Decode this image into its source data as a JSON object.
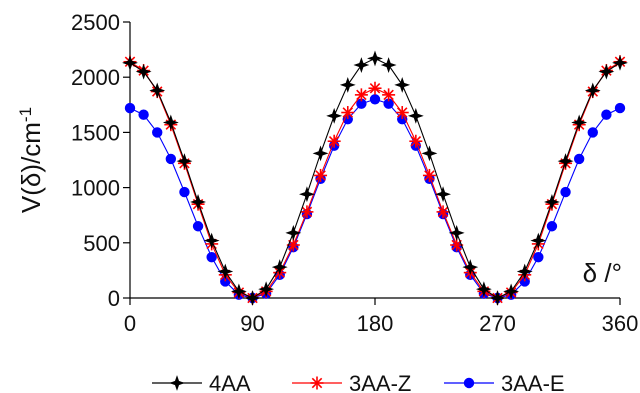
{
  "chart_data": {
    "type": "line",
    "xlabel": "δ /°",
    "ylabel": "V(δ)/cm",
    "ylabel_superscript": "-1",
    "xlim": [
      0,
      360
    ],
    "ylim": [
      0,
      2500
    ],
    "xticks": [
      0,
      90,
      180,
      270,
      360
    ],
    "yticks": [
      0,
      500,
      1000,
      1500,
      2000,
      2500
    ],
    "grid": false,
    "legend_position": "bottom",
    "x": [
      0,
      10,
      20,
      30,
      40,
      50,
      60,
      70,
      80,
      90,
      100,
      110,
      120,
      130,
      140,
      150,
      160,
      170,
      180,
      190,
      200,
      210,
      220,
      230,
      240,
      250,
      260,
      270,
      280,
      290,
      300,
      310,
      320,
      330,
      340,
      350,
      360
    ],
    "series": [
      {
        "name": "4AA",
        "color": "#000000",
        "marker": "star4",
        "values": [
          2130,
          2050,
          1880,
          1590,
          1240,
          870,
          520,
          240,
          60,
          0,
          80,
          280,
          590,
          940,
          1310,
          1650,
          1930,
          2110,
          2170,
          2110,
          1930,
          1650,
          1310,
          940,
          590,
          280,
          80,
          0,
          60,
          240,
          520,
          870,
          1240,
          1590,
          1880,
          2050,
          2130
        ]
      },
      {
        "name": "3AA-Z",
        "color": "#ff0000",
        "marker": "asterisk",
        "values": [
          2140,
          2060,
          1870,
          1570,
          1220,
          850,
          490,
          210,
          50,
          0,
          60,
          230,
          480,
          780,
          1110,
          1420,
          1680,
          1840,
          1900,
          1840,
          1680,
          1420,
          1110,
          780,
          480,
          230,
          60,
          0,
          50,
          210,
          490,
          850,
          1220,
          1570,
          1870,
          2060,
          2140
        ]
      },
      {
        "name": "3AA-E",
        "color": "#0000ff",
        "marker": "circle",
        "values": [
          1720,
          1660,
          1500,
          1260,
          960,
          650,
          370,
          150,
          30,
          0,
          40,
          210,
          460,
          760,
          1080,
          1380,
          1620,
          1760,
          1800,
          1760,
          1620,
          1380,
          1080,
          760,
          460,
          210,
          40,
          0,
          30,
          150,
          370,
          650,
          960,
          1260,
          1500,
          1660,
          1720
        ]
      }
    ]
  }
}
